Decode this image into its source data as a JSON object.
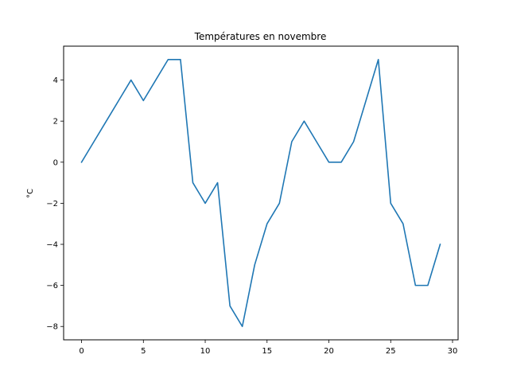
{
  "chart_data": {
    "type": "line",
    "title": "Températures en novembre",
    "xlabel": "",
    "ylabel": "°C",
    "x": [
      0,
      1,
      2,
      3,
      4,
      5,
      6,
      7,
      8,
      9,
      10,
      11,
      12,
      13,
      14,
      15,
      16,
      17,
      18,
      19,
      20,
      21,
      22,
      23,
      24,
      25,
      26,
      27,
      28,
      29
    ],
    "series": [
      {
        "values": [
          0,
          1,
          2,
          3,
          4,
          3,
          4,
          5,
          5,
          -1,
          -2,
          -1,
          -7,
          -8,
          -5,
          -3,
          -2,
          1,
          2,
          1,
          0,
          0,
          1,
          3,
          5,
          -2,
          -3,
          -6,
          -6,
          -4
        ],
        "color": "#1f77b4"
      }
    ],
    "xlim": [
      -1.45,
      30.45
    ],
    "ylim": [
      -8.65,
      5.65
    ],
    "xticks": [
      0,
      5,
      10,
      15,
      20,
      25,
      30
    ],
    "yticks": [
      -8,
      -6,
      -4,
      -2,
      0,
      2,
      4
    ],
    "xtick_labels": [
      "0",
      "5",
      "10",
      "15",
      "20",
      "25",
      "30"
    ],
    "ytick_labels": [
      "−8",
      "−6",
      "−4",
      "−2",
      "0",
      "2",
      "4"
    ],
    "grid": false,
    "legend": "none"
  }
}
